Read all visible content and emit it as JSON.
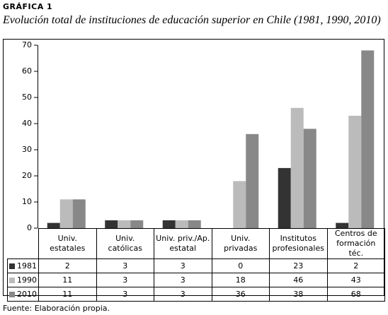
{
  "title": "GRÁFICA 1",
  "subtitle": "Evolución total de instituciones de educación superior en Chile (1981, 1990, 2010)",
  "source": "Fuente: Elaboración propia.",
  "chart_data": {
    "type": "bar",
    "categories": [
      "Univ. estatales",
      "Univ. católicas",
      "Univ. priv./Ap. estatal",
      "Univ. privadas",
      "Institutos profesionales",
      "Centros de formación téc."
    ],
    "series": [
      {
        "name": "1981",
        "color": "#333333",
        "values": [
          2,
          3,
          3,
          0,
          23,
          2
        ]
      },
      {
        "name": "1990",
        "color": "#bbbbbb",
        "values": [
          11,
          3,
          3,
          18,
          46,
          43
        ]
      },
      {
        "name": "2010",
        "color": "#888888",
        "values": [
          11,
          3,
          3,
          36,
          38,
          68
        ]
      }
    ],
    "ylim": [
      0,
      70
    ],
    "yticks": [
      0,
      10,
      20,
      30,
      40,
      50,
      60,
      70
    ],
    "grid": false
  }
}
